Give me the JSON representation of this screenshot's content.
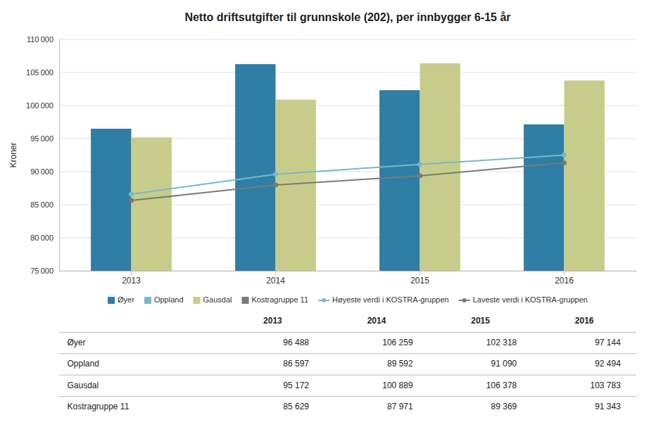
{
  "chart_data": {
    "type": "bar",
    "title": "Netto driftsutgifter til grunnskole (202), per innbygger 6-15 år",
    "y_label": "Kroner",
    "categories": [
      "2013",
      "2014",
      "2015",
      "2016"
    ],
    "series": [
      {
        "name": "Øyer",
        "type": "bar",
        "color": "#2e7ea6",
        "values": [
          96488,
          106259,
          102318,
          97144
        ],
        "value_labels": [
          "96 488",
          "106 259",
          "102 318",
          "97 144"
        ]
      },
      {
        "name": "Oppland",
        "type": "line",
        "color": "#7ab8c4",
        "marker": "circle",
        "values": [
          86597,
          89592,
          91090,
          92494
        ],
        "value_labels": [
          "86 597",
          "89 592",
          "91 090",
          "92 494"
        ]
      },
      {
        "name": "Gausdal",
        "type": "bar",
        "color": "#c8cc8a",
        "values": [
          95172,
          100889,
          106378,
          103783
        ],
        "value_labels": [
          "95 172",
          "100 889",
          "106 378",
          "103 783"
        ]
      },
      {
        "name": "Kostragruppe 11",
        "type": "line",
        "color": "#7a7a7a",
        "marker": "circle",
        "values": [
          85629,
          87971,
          89369,
          91343
        ],
        "value_labels": [
          "85 629",
          "87 971",
          "89 369",
          "91 343"
        ]
      }
    ],
    "legend_lines": [
      {
        "name": "Høyeste verdi i KOSTRA-gruppen",
        "color": "#7ab8c4",
        "marker": "circle"
      },
      {
        "name": "Laveste verdi i KOSTRA-gruppen",
        "color": "#7a7a7a",
        "marker": "circle"
      }
    ],
    "ylim": [
      75000,
      110000
    ],
    "yticks": [
      {
        "value": 75000,
        "label": "75 000"
      },
      {
        "value": 80000,
        "label": "80 000"
      },
      {
        "value": 85000,
        "label": "85 000"
      },
      {
        "value": 90000,
        "label": "90 000"
      },
      {
        "value": 95000,
        "label": "95 000"
      },
      {
        "value": 100000,
        "label": "100 000"
      },
      {
        "value": 105000,
        "label": "105 000"
      },
      {
        "value": 110000,
        "label": "110 000"
      }
    ],
    "grid": true,
    "legend": "bottom"
  }
}
